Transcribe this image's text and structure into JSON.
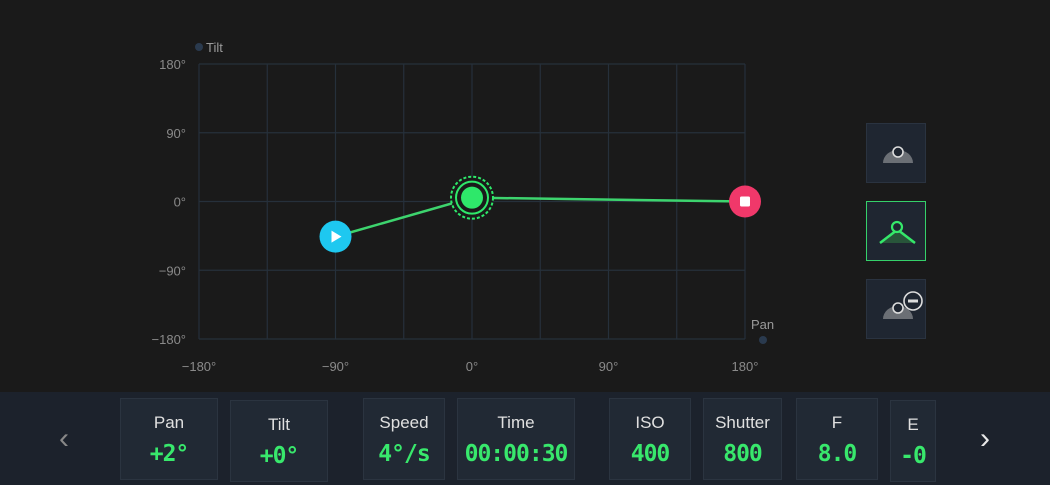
{
  "chart_data": {
    "type": "line",
    "xlabel": "Pan",
    "ylabel": "Tilt",
    "xlim": [
      -180,
      180
    ],
    "ylim": [
      -180,
      180
    ],
    "x_ticks": [
      "−180°",
      "−90°",
      "0°",
      "90°",
      "180°"
    ],
    "y_ticks": [
      "180°",
      "90°",
      "0°",
      "−90°",
      "−180°"
    ],
    "grid": true,
    "points": [
      {
        "pan": -90,
        "tilt": -46,
        "role": "start",
        "icon": "play-icon",
        "color": "#1ec8f0"
      },
      {
        "pan": 0,
        "tilt": 5,
        "role": "current-keyframe",
        "color": "#2ee86a"
      },
      {
        "pan": 180,
        "tilt": 0,
        "role": "end",
        "icon": "stop-icon",
        "color": "#f0386a"
      }
    ],
    "line_color": "#3dd46e"
  },
  "side_buttons": [
    {
      "name": "keyframe-mode-button",
      "icon": "dome-keyframe-icon",
      "active": false
    },
    {
      "name": "path-mode-button",
      "icon": "angle-path-icon",
      "active": true
    },
    {
      "name": "remove-keyframe-button",
      "icon": "remove-keyframe-icon",
      "active": false
    }
  ],
  "params": [
    {
      "label": "Pan",
      "value": "+2°"
    },
    {
      "label": "Tilt",
      "value": "+0°"
    },
    {
      "label": "Speed",
      "value": "4°/s"
    },
    {
      "label": "Time",
      "value": "00:00:30"
    },
    {
      "label": "ISO",
      "value": "400"
    },
    {
      "label": "Shutter",
      "value": "800"
    },
    {
      "label": "F",
      "value": "8.0"
    },
    {
      "label": "E",
      "value": "-0"
    }
  ],
  "nav": {
    "prev": "‹",
    "next": "›"
  },
  "colors": {
    "accent": "#38e86c",
    "background": "#1a1a1a",
    "grid": "#26303b"
  }
}
